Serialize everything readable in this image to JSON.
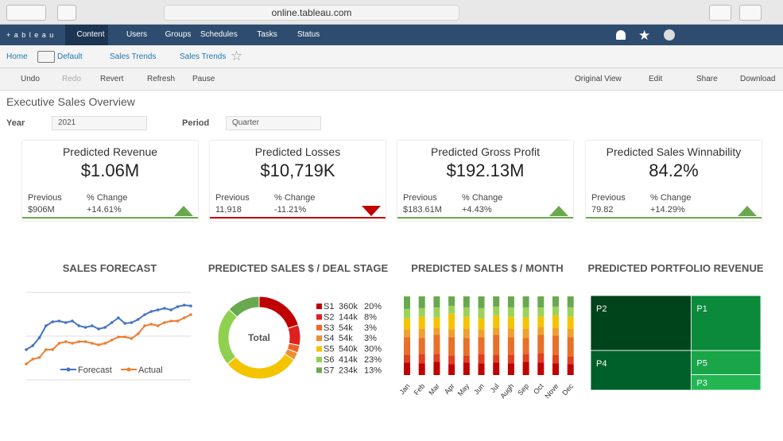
{
  "browser": {
    "url": "online.tableau.com"
  },
  "nav": {
    "brand": "+ a b l e a u",
    "items": [
      "Content",
      "Users",
      "Groups",
      "Schedules",
      "Tasks",
      "Status"
    ]
  },
  "breadcrumb": [
    "Home",
    "Default",
    "Sales Trends",
    "Sales Trends"
  ],
  "toolbar": {
    "left": [
      "Undo",
      "Redo",
      "Revert",
      "Refresh",
      "Pause"
    ],
    "right": [
      "Original View",
      "Edit",
      "Share",
      "Download"
    ]
  },
  "dashboard": {
    "title": "Executive Sales Overview",
    "filters": [
      {
        "label": "Year",
        "value": "2021"
      },
      {
        "label": "Period",
        "value": "Quarter"
      }
    ]
  },
  "kpis": [
    {
      "title": "Predicted Revenue",
      "value": "$1.06M",
      "previous_label": "Previous",
      "previous": "$906M",
      "change_label": "% Change",
      "change": "+14.61%",
      "trend": "up",
      "color": "#6aa84f"
    },
    {
      "title": "Predicted Losses",
      "value": "$10,719K",
      "previous_label": "Previous",
      "previous": "11,918",
      "change_label": "% Change",
      "change": "-11.21%",
      "trend": "down",
      "color": "#c00000"
    },
    {
      "title": "Predicted Gross Profit",
      "value": "$192.13M",
      "previous_label": "Previous",
      "previous": "$183.61M",
      "change_label": "% Change",
      "change": "+4.43%",
      "trend": "up",
      "color": "#6aa84f"
    },
    {
      "title": "Predicted Sales Winnability",
      "value": "84.2%",
      "previous_label": "Previous",
      "previous": "79.82",
      "change_label": "% Change",
      "change": "+14.29%",
      "trend": "up",
      "color": "#6aa84f"
    }
  ],
  "chart_data": [
    {
      "type": "line",
      "title": "SALES FORECAST",
      "x": [
        1,
        2,
        3,
        4,
        5,
        6,
        7,
        8,
        9,
        10,
        11,
        12,
        13,
        14,
        15,
        16,
        17,
        18,
        19,
        20,
        21,
        22,
        23,
        24,
        25,
        26
      ],
      "xlim": [
        1,
        26
      ],
      "ylim": [
        0,
        100
      ],
      "series": [
        {
          "name": "Forecast",
          "color": "#4472c4",
          "values": [
            30,
            35,
            45,
            60,
            65,
            66,
            64,
            66,
            60,
            58,
            60,
            56,
            58,
            64,
            70,
            63,
            64,
            68,
            74,
            78,
            80,
            82,
            80,
            84,
            86,
            85
          ]
        },
        {
          "name": "Actual",
          "color": "#ed7d31",
          "values": [
            12,
            18,
            20,
            30,
            30,
            38,
            40,
            38,
            40,
            40,
            38,
            36,
            38,
            42,
            46,
            46,
            44,
            50,
            60,
            62,
            60,
            64,
            66,
            66,
            70,
            74
          ]
        }
      ]
    },
    {
      "type": "donut",
      "title": "PREDICTED SALES $ / DEAL STAGE",
      "center_label": "Total",
      "categories": [
        "S1",
        "S2",
        "S3",
        "S4",
        "S5",
        "S6",
        "S7"
      ],
      "values": [
        20,
        8,
        3,
        3,
        30,
        23,
        13
      ],
      "value_labels": [
        "20%",
        "8%",
        "3%",
        "3%",
        "30%",
        "23%",
        "13%"
      ],
      "amounts": [
        360000,
        144000,
        54000,
        54000,
        540000,
        414000,
        234000
      ],
      "amount_labels": [
        "360k",
        "144k",
        "54k",
        "54k",
        "540k",
        "414k",
        "234k"
      ],
      "colors": [
        "#c00000",
        "#e02020",
        "#f0642a",
        "#f08c30",
        "#f5c400",
        "#8fd14f",
        "#6aa84f"
      ]
    },
    {
      "type": "stacked_bar",
      "title": "PREDICTED SALES $ / MONTH",
      "categories": [
        "Jan",
        "Feb",
        "Mar",
        "Apr",
        "May",
        "Jun",
        "Jul",
        "Augh",
        "Sep",
        "Oct",
        "Nove",
        "Dec"
      ],
      "ylim": [
        0,
        100
      ],
      "series": [
        {
          "color": "#c00000",
          "values": [
            16,
            15,
            17,
            14,
            16,
            15,
            16,
            15,
            17,
            16,
            15,
            14
          ]
        },
        {
          "color": "#e04020",
          "values": [
            10,
            12,
            10,
            11,
            9,
            12,
            10,
            11,
            10,
            12,
            11,
            10
          ]
        },
        {
          "color": "#e8702a",
          "values": [
            22,
            20,
            24,
            23,
            22,
            21,
            25,
            22,
            20,
            23,
            24,
            24
          ]
        },
        {
          "color": "#f0a030",
          "values": [
            10,
            12,
            9,
            10,
            12,
            10,
            9,
            11,
            12,
            10,
            10,
            11
          ]
        },
        {
          "color": "#f5c400",
          "values": [
            14,
            15,
            13,
            20,
            15,
            14,
            16,
            15,
            14,
            13,
            16,
            15
          ]
        },
        {
          "color": "#9bd35a",
          "values": [
            12,
            11,
            13,
            10,
            12,
            13,
            11,
            12,
            13,
            12,
            11,
            12
          ]
        },
        {
          "color": "#6aa84f",
          "values": [
            16,
            15,
            14,
            12,
            14,
            15,
            13,
            14,
            14,
            14,
            13,
            14
          ]
        }
      ]
    },
    {
      "type": "treemap",
      "title": "PREDICTED PORTFOLIO REVENUE",
      "categories": [
        "P2",
        "P4",
        "P1",
        "P5",
        "P3"
      ],
      "values": [
        36,
        26,
        25,
        11,
        7
      ],
      "colors": [
        "#00441b",
        "#00602a",
        "#0a8a3a",
        "#19a548",
        "#22b552"
      ]
    }
  ]
}
